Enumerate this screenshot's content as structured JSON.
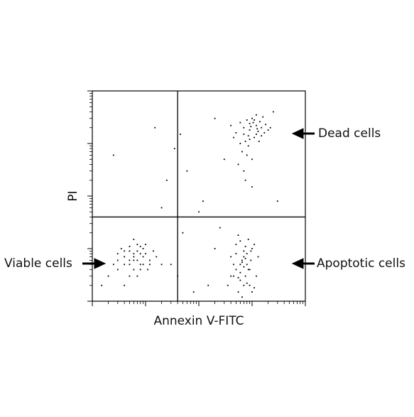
{
  "chart_data": {
    "type": "scatter",
    "x_label": "Annexin V-FITC",
    "y_label": "PI",
    "log_scale": true,
    "color": "#000000",
    "xlim": [
      1,
      10000
    ],
    "ylim": [
      1,
      10000
    ],
    "xticks": [
      1,
      10,
      100,
      1000,
      10000
    ],
    "yticks": [
      1,
      10,
      100,
      1000,
      10000
    ],
    "gates": {
      "x": 40,
      "y": 40
    },
    "annotations": [
      {
        "text": "Dead cells",
        "x": 10000,
        "y": 1700
      },
      {
        "text": "Viable cells",
        "x": 1,
        "y": 7
      },
      {
        "text": "Apoptotic cells",
        "x": 10000,
        "y": 7
      }
    ],
    "x": [
      6,
      4,
      8,
      5,
      10,
      3,
      7,
      9,
      5,
      12,
      6,
      4,
      2.5,
      8,
      11,
      7,
      3.5,
      6,
      9,
      5,
      14,
      2,
      7,
      4,
      10,
      6,
      8,
      3,
      5,
      12,
      7,
      4,
      9,
      6,
      16,
      3,
      1.5,
      20,
      8,
      5,
      600,
      450,
      800,
      700,
      500,
      900,
      650,
      550,
      1000,
      750,
      400,
      850,
      600,
      700,
      950,
      500,
      1200,
      650,
      800,
      550,
      900,
      700,
      450,
      1100,
      600,
      750,
      350,
      1000,
      850,
      500,
      700,
      1300,
      600,
      800,
      400,
      950,
      650,
      550,
      750,
      1100,
      900,
      1200,
      700,
      1500,
      800,
      1100,
      600,
      1300,
      1000,
      750,
      1800,
      950,
      500,
      1400,
      850,
      1200,
      700,
      2000,
      1050,
      650,
      1600,
      900,
      1250,
      550,
      800,
      1000,
      700,
      1500,
      2200,
      600,
      1100,
      1350,
      450,
      900,
      1700,
      750,
      1000,
      1200,
      850,
      400,
      30,
      50,
      40,
      200,
      150,
      100,
      60,
      25,
      15,
      35,
      200,
      300,
      120,
      2.5,
      80,
      20,
      3000,
      2500,
      250,
      45
    ],
    "values": [
      7,
      9,
      5,
      6,
      8,
      4,
      12,
      10,
      3,
      6,
      15,
      7,
      5,
      8,
      4,
      6,
      10,
      4,
      7,
      9,
      9,
      3,
      3,
      5,
      12,
      8,
      4,
      8,
      11,
      5,
      9,
      2,
      5,
      6,
      7,
      6,
      2,
      5,
      11,
      5,
      5,
      3,
      8,
      2,
      12,
      4,
      6,
      1.5,
      10,
      3,
      7,
      15,
      2.5,
      9,
      6,
      4,
      3,
      1.2,
      5,
      18,
      2,
      7,
      5,
      12,
      3.5,
      11,
      2,
      1.5,
      4,
      8,
      4.5,
      7,
      14,
      2.2,
      3,
      9,
      5.5,
      2.8,
      6.5,
      1.8,
      1800,
      2200,
      1500,
      2000,
      2800,
      1300,
      2500,
      1700,
      3000,
      1100,
      2300,
      2100,
      1600,
      2600,
      900,
      1500,
      2000,
      1800,
      2500,
      700,
      3200,
      1200,
      1900,
      400,
      600,
      500,
      300,
      1400,
      2000,
      1000,
      2800,
      1100,
      1300,
      2400,
      1600,
      200,
      150,
      3500,
      1400,
      2200,
      5,
      20,
      3,
      10,
      2,
      50,
      300,
      200,
      2000,
      800,
      3000,
      500,
      80,
      600,
      1.5,
      60,
      80,
      4000,
      25,
      1500
    ]
  }
}
